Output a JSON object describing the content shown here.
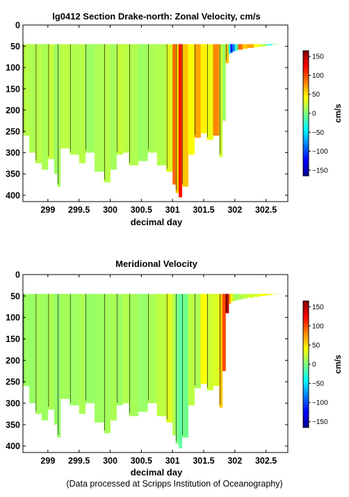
{
  "footer": {
    "credit": "(Data processed at Scripps Institution of Oceanography)"
  },
  "chart_data": [
    {
      "type": "heatmap",
      "title": "lg0412 Section Drake-north: Zonal Velocity, cm/s",
      "xlabel": "decimal day",
      "ylabel": "",
      "xlim": [
        298.6,
        302.85
      ],
      "ylim": [
        0,
        415
      ],
      "y_reversed": true,
      "x_ticks": [
        299,
        299.5,
        300,
        300.5,
        301,
        301.5,
        302,
        302.5
      ],
      "x_tick_labels": [
        "299",
        "299.5",
        "300",
        "300.5",
        "301",
        "301.5",
        "302",
        "302.5"
      ],
      "y_ticks": [
        0,
        50,
        100,
        150,
        200,
        250,
        300,
        350,
        400
      ],
      "y_tick_labels": [
        "0",
        "50",
        "100",
        "150",
        "200",
        "250",
        "300",
        "350",
        "400"
      ],
      "colorbar": {
        "label": "cm/s",
        "range": [
          -165,
          165
        ],
        "ticks": [
          150,
          100,
          50,
          0,
          -50,
          -100,
          -150
        ],
        "tick_labels": [
          "150",
          "100",
          "50",
          "0",
          "−50",
          "−100",
          "−150"
        ]
      },
      "top_depth": 45,
      "profiles": [
        [
          298.6,
          260,
          18
        ],
        [
          298.7,
          300,
          15
        ],
        [
          298.8,
          325,
          18
        ],
        [
          298.9,
          340,
          14
        ],
        [
          299.0,
          315,
          22
        ],
        [
          299.1,
          350,
          10
        ],
        [
          299.15,
          380,
          12
        ],
        [
          299.2,
          290,
          20
        ],
        [
          299.35,
          305,
          16
        ],
        [
          299.5,
          325,
          18
        ],
        [
          299.6,
          300,
          10
        ],
        [
          299.75,
          345,
          14
        ],
        [
          299.9,
          370,
          18
        ],
        [
          300.0,
          340,
          12
        ],
        [
          300.1,
          305,
          22
        ],
        [
          300.2,
          300,
          20
        ],
        [
          300.3,
          330,
          16
        ],
        [
          300.45,
          320,
          10
        ],
        [
          300.6,
          300,
          14
        ],
        [
          300.75,
          330,
          16
        ],
        [
          300.9,
          345,
          30
        ],
        [
          301.0,
          375,
          90
        ],
        [
          301.05,
          395,
          60
        ],
        [
          301.1,
          405,
          120
        ],
        [
          301.15,
          380,
          60
        ],
        [
          301.25,
          305,
          40
        ],
        [
          301.35,
          265,
          70
        ],
        [
          301.45,
          255,
          45
        ],
        [
          301.55,
          270,
          35
        ],
        [
          301.65,
          260,
          80
        ],
        [
          301.75,
          310,
          25
        ],
        [
          301.8,
          225,
          10
        ],
        [
          301.85,
          90,
          60
        ],
        [
          301.9,
          68,
          -40
        ],
        [
          301.93,
          65,
          -130
        ],
        [
          301.96,
          62,
          -80
        ],
        [
          302.0,
          60,
          -20
        ],
        [
          302.05,
          58,
          90
        ],
        [
          302.12,
          56,
          60
        ],
        [
          302.2,
          54,
          70
        ],
        [
          302.3,
          52,
          40
        ],
        [
          302.4,
          50,
          20
        ],
        [
          302.5,
          48,
          -30
        ],
        [
          302.6,
          46,
          10
        ],
        [
          302.7,
          44,
          15
        ],
        [
          302.85,
          44,
          10
        ]
      ]
    },
    {
      "type": "heatmap",
      "title": "Meridional Velocity",
      "xlabel": "decimal day",
      "ylabel": "",
      "xlim": [
        298.6,
        302.85
      ],
      "ylim": [
        0,
        415
      ],
      "y_reversed": true,
      "x_ticks": [
        299,
        299.5,
        300,
        300.5,
        301,
        301.5,
        302,
        302.5
      ],
      "x_tick_labels": [
        "299",
        "299.5",
        "300",
        "300.5",
        "301",
        "301.5",
        "302",
        "302.5"
      ],
      "y_ticks": [
        0,
        50,
        100,
        150,
        200,
        250,
        300,
        350,
        400
      ],
      "y_tick_labels": [
        "0",
        "50",
        "100",
        "150",
        "200",
        "250",
        "300",
        "350",
        "400"
      ],
      "colorbar": {
        "label": "cm/s",
        "range": [
          -165,
          165
        ],
        "ticks": [
          150,
          100,
          50,
          0,
          -50,
          -100,
          -150
        ],
        "tick_labels": [
          "150",
          "100",
          "50",
          "0",
          "−50",
          "−100",
          "−150"
        ]
      },
      "top_depth": 45,
      "profiles": [
        [
          298.6,
          260,
          10
        ],
        [
          298.7,
          300,
          8
        ],
        [
          298.8,
          325,
          12
        ],
        [
          298.9,
          340,
          10
        ],
        [
          299.0,
          315,
          14
        ],
        [
          299.1,
          350,
          8
        ],
        [
          299.15,
          380,
          6
        ],
        [
          299.2,
          290,
          12
        ],
        [
          299.35,
          305,
          10
        ],
        [
          299.5,
          325,
          14
        ],
        [
          299.6,
          300,
          8
        ],
        [
          299.75,
          345,
          10
        ],
        [
          299.9,
          370,
          12
        ],
        [
          300.0,
          340,
          14
        ],
        [
          300.1,
          305,
          10
        ],
        [
          300.2,
          300,
          16
        ],
        [
          300.3,
          330,
          12
        ],
        [
          300.45,
          320,
          8
        ],
        [
          300.6,
          300,
          14
        ],
        [
          300.75,
          330,
          20
        ],
        [
          300.9,
          345,
          30
        ],
        [
          301.0,
          375,
          15
        ],
        [
          301.05,
          395,
          0
        ],
        [
          301.1,
          405,
          -10
        ],
        [
          301.15,
          380,
          -5
        ],
        [
          301.25,
          305,
          20
        ],
        [
          301.35,
          265,
          15
        ],
        [
          301.45,
          255,
          40
        ],
        [
          301.55,
          270,
          25
        ],
        [
          301.65,
          260,
          30
        ],
        [
          301.75,
          310,
          60
        ],
        [
          301.8,
          225,
          100
        ],
        [
          301.85,
          90,
          150
        ],
        [
          301.9,
          68,
          80
        ],
        [
          301.93,
          65,
          40
        ],
        [
          301.96,
          62,
          20
        ],
        [
          302.0,
          60,
          10
        ],
        [
          302.05,
          58,
          15
        ],
        [
          302.12,
          56,
          20
        ],
        [
          302.2,
          54,
          25
        ],
        [
          302.3,
          52,
          30
        ],
        [
          302.4,
          50,
          40
        ],
        [
          302.5,
          48,
          35
        ],
        [
          302.6,
          46,
          20
        ],
        [
          302.7,
          44,
          15
        ],
        [
          302.85,
          44,
          10
        ]
      ]
    }
  ]
}
